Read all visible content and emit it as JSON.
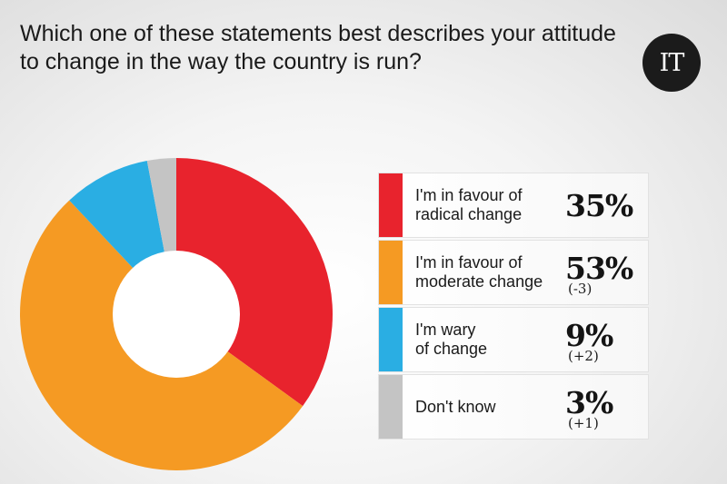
{
  "title": "Which one of these statements best describes your attitude to change in the way the country is run?",
  "logo_text": "IT",
  "chart_data": {
    "type": "pie",
    "style": "donut",
    "categories": [
      "I'm in favour of radical change",
      "I'm in favour of moderate change",
      "I'm wary of change",
      "Don't know"
    ],
    "values": [
      35,
      53,
      9,
      3
    ],
    "value_labels": [
      "35%",
      "53%",
      "9%",
      "3%"
    ],
    "changes": [
      "",
      "(-3)",
      "(+2)",
      "(+1)"
    ],
    "colors": [
      "#e8232d",
      "#f59a23",
      "#2aaee3",
      "#c4c4c4"
    ],
    "legend_lines": [
      [
        "I'm in favour of",
        "radical change"
      ],
      [
        "I'm in favour of",
        "moderate change"
      ],
      [
        "I'm wary",
        "of change"
      ],
      [
        "Don't know"
      ]
    ],
    "legend_position": "right"
  }
}
